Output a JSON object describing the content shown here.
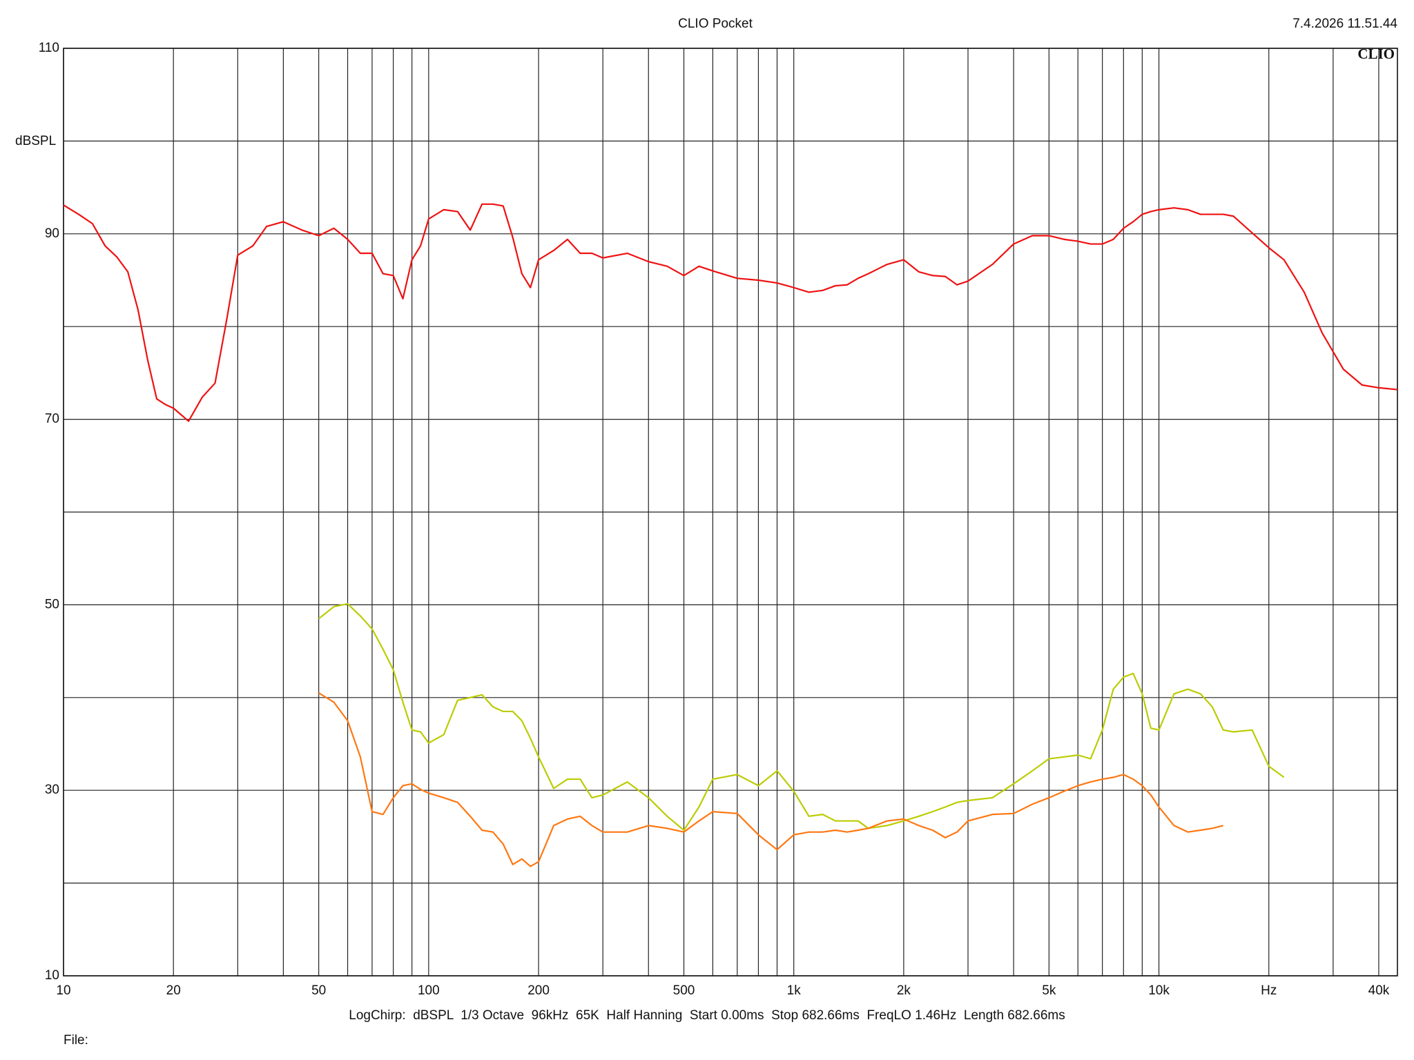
{
  "chart_data": {
    "type": "line",
    "title": "CLIO Pocket",
    "timestamp": "7.4.2026 11.51.44",
    "logo": "CLIO",
    "ylabel": "dBSPL",
    "footer": "LogChirp:  dBSPL  1/3 Octave  96kHz  65K  Half Hanning  Start 0.00ms  Stop 682.66ms  FreqLO 1.46Hz  Length 682.66ms",
    "file_label": "File:",
    "xscale": "log",
    "grid": true,
    "xlim": [
      10,
      45000
    ],
    "ylim": [
      10,
      110
    ],
    "xticks": [
      10,
      20,
      50,
      100,
      200,
      500,
      {
        "value": 1000,
        "label": "1k"
      },
      {
        "value": 2000,
        "label": "2k"
      },
      {
        "value": 5000,
        "label": "5k"
      },
      {
        "value": 10000,
        "label": "10k"
      },
      {
        "value": 20000,
        "label": "Hz"
      },
      {
        "value": 40000,
        "label": "40k"
      }
    ],
    "xminor": [
      30,
      40,
      60,
      70,
      80,
      90,
      300,
      400,
      600,
      700,
      800,
      900,
      3000,
      4000,
      6000,
      7000,
      8000,
      9000,
      30000
    ],
    "yticks": [
      10,
      30,
      50,
      70,
      90,
      110
    ],
    "yminor": [
      20,
      40,
      60,
      80,
      100
    ],
    "x": [
      10,
      11,
      12,
      13,
      14,
      15,
      16,
      17,
      18,
      19,
      20,
      22,
      24,
      26,
      28,
      30,
      33,
      36,
      40,
      45,
      50,
      55,
      60,
      65,
      70,
      75,
      80,
      85,
      90,
      95,
      100,
      110,
      120,
      130,
      140,
      150,
      160,
      170,
      180,
      190,
      200,
      220,
      240,
      260,
      280,
      300,
      350,
      400,
      450,
      500,
      550,
      600,
      700,
      800,
      900,
      1000,
      1100,
      1200,
      1300,
      1400,
      1500,
      1600,
      1800,
      2000,
      2200,
      2400,
      2600,
      2800,
      3000,
      3500,
      4000,
      4500,
      5000,
      5500,
      6000,
      6500,
      7000,
      7500,
      8000,
      8500,
      9000,
      9500,
      10000,
      11000,
      12000,
      13000,
      14000,
      15000,
      16000,
      18000,
      20000,
      22000,
      25000,
      28000,
      32000,
      36000,
      40000,
      45000
    ],
    "series": [
      {
        "color": "#ee1111",
        "values": [
          93.1,
          92.1,
          91.1,
          88.7,
          87.5,
          85.9,
          81.8,
          76.4,
          72.2,
          71.6,
          71.2,
          69.8,
          72.4,
          73.9,
          80.8,
          87.7,
          88.7,
          90.8,
          91.3,
          90.4,
          89.8,
          90.6,
          89.4,
          87.9,
          87.9,
          85.7,
          85.5,
          83.0,
          87.2,
          88.7,
          91.6,
          92.6,
          92.4,
          90.4,
          93.2,
          93.2,
          93.0,
          89.6,
          85.7,
          84.2,
          87.2,
          88.2,
          89.4,
          87.9,
          87.9,
          87.4,
          87.9,
          87.0,
          86.5,
          85.5,
          86.5,
          86.0,
          85.2,
          85.0,
          84.7,
          84.2,
          83.7,
          83.9,
          84.4,
          84.5,
          85.2,
          85.7,
          86.7,
          87.2,
          85.9,
          85.5,
          85.4,
          84.5,
          84.9,
          86.7,
          88.9,
          89.8,
          89.8,
          89.4,
          89.2,
          88.9,
          88.9,
          89.4,
          90.6,
          91.3,
          92.1,
          92.4,
          92.6,
          92.8,
          92.6,
          92.1,
          92.1,
          92.1,
          91.9,
          90.1,
          88.5,
          87.2,
          83.7,
          79.3,
          75.4,
          73.7,
          73.4,
          73.2
        ]
      },
      {
        "color": "#bbcc00",
        "values": [
          null,
          null,
          null,
          null,
          null,
          null,
          null,
          null,
          null,
          null,
          null,
          null,
          null,
          null,
          null,
          null,
          null,
          null,
          null,
          null,
          48.5,
          49.8,
          50.1,
          48.8,
          47.4,
          45.2,
          43.0,
          39.5,
          36.5,
          36.3,
          35.1,
          36.0,
          39.7,
          40.0,
          40.3,
          39.0,
          38.5,
          38.5,
          37.5,
          35.6,
          33.6,
          30.2,
          31.2,
          31.2,
          29.2,
          29.5,
          30.9,
          29.2,
          27.2,
          25.7,
          28.2,
          31.2,
          31.7,
          30.5,
          32.1,
          29.9,
          27.2,
          27.4,
          26.7,
          26.7,
          26.7,
          25.9,
          26.2,
          26.7,
          27.2,
          27.7,
          28.2,
          28.7,
          28.9,
          29.2,
          30.7,
          32.1,
          33.4,
          33.6,
          33.8,
          33.4,
          36.5,
          40.9,
          42.2,
          42.6,
          40.4,
          36.7,
          36.5,
          40.4,
          40.9,
          40.4,
          39.0,
          36.5,
          36.3,
          36.5,
          32.6,
          31.4,
          null,
          null,
          null,
          null,
          null,
          null
        ]
      },
      {
        "color": "#ff7711",
        "values": [
          null,
          null,
          null,
          null,
          null,
          null,
          null,
          null,
          null,
          null,
          null,
          null,
          null,
          null,
          null,
          null,
          null,
          null,
          null,
          null,
          40.5,
          39.5,
          37.5,
          33.6,
          27.7,
          27.4,
          29.2,
          30.5,
          30.7,
          30.1,
          29.7,
          29.2,
          28.7,
          27.2,
          25.7,
          25.5,
          24.2,
          22.0,
          22.6,
          21.8,
          22.3,
          26.2,
          26.9,
          27.2,
          26.2,
          25.5,
          25.5,
          26.2,
          25.9,
          25.5,
          26.7,
          27.7,
          27.5,
          25.2,
          23.6,
          25.2,
          25.5,
          25.5,
          25.7,
          25.5,
          25.7,
          25.9,
          26.7,
          26.9,
          26.2,
          25.7,
          24.9,
          25.5,
          26.7,
          27.4,
          27.5,
          28.5,
          29.2,
          29.9,
          30.5,
          30.9,
          31.2,
          31.4,
          31.7,
          31.2,
          30.5,
          29.5,
          28.2,
          26.2,
          25.5,
          25.7,
          25.9,
          26.2,
          null,
          null,
          null,
          null,
          null,
          null,
          null,
          null,
          null,
          null
        ]
      }
    ]
  }
}
